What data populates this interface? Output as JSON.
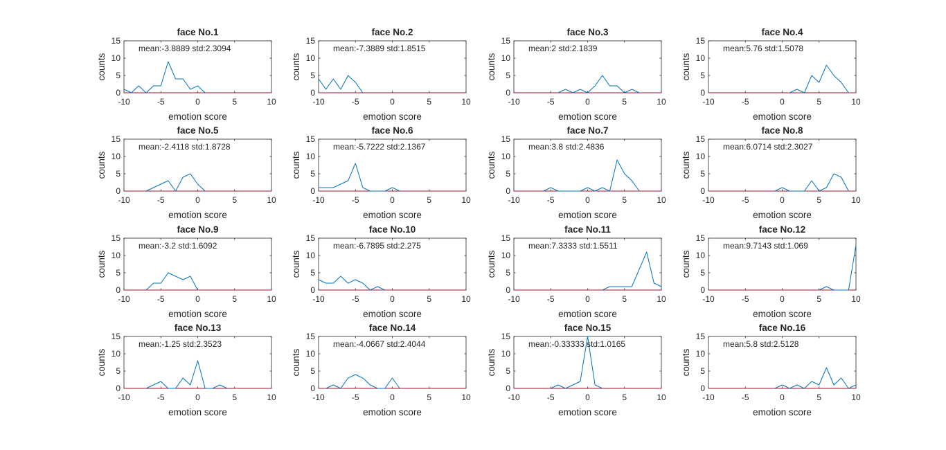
{
  "figure": {
    "background": "#ffffff",
    "line_color": "#0072bd",
    "baseline_color": "#a2142f",
    "axis_color": "#262626"
  },
  "chart_data": [
    {
      "type": "line",
      "title": "face No.1",
      "xlabel": "emotion score",
      "ylabel": "counts",
      "annotation": "mean:-3.8889  std:2.3094",
      "xlim": [
        -10,
        10
      ],
      "ylim": [
        0,
        15
      ],
      "xticks": [
        "-10",
        "-5",
        "0",
        "5",
        "10"
      ],
      "yticks": [
        "0",
        "5",
        "10",
        "15"
      ],
      "x": [
        -10,
        -9,
        -8,
        -7,
        -6,
        -5,
        -4,
        -3,
        -2,
        -1,
        0,
        1
      ],
      "y": [
        1,
        0,
        2,
        0,
        2,
        2,
        9,
        4,
        4,
        1,
        2,
        0
      ]
    },
    {
      "type": "line",
      "title": "face No.2",
      "xlabel": "emotion score",
      "ylabel": "counts",
      "annotation": "mean:-7.3889  std:1.8515",
      "xlim": [
        -10,
        10
      ],
      "ylim": [
        0,
        15
      ],
      "xticks": [
        "-10",
        "-5",
        "0",
        "5",
        "10"
      ],
      "yticks": [
        "0",
        "5",
        "10",
        "15"
      ],
      "x": [
        -10,
        -9,
        -8,
        -7,
        -6,
        -5,
        -4
      ],
      "y": [
        4,
        1,
        4,
        1,
        5,
        3,
        0
      ]
    },
    {
      "type": "line",
      "title": "face No.3",
      "xlabel": "emotion score",
      "ylabel": "counts",
      "annotation": "mean:2  std:2.1839",
      "xlim": [
        -10,
        10
      ],
      "ylim": [
        0,
        15
      ],
      "xticks": [
        "-10",
        "-5",
        "0",
        "5",
        "10"
      ],
      "yticks": [
        "0",
        "5",
        "10",
        "15"
      ],
      "x": [
        -4,
        -3,
        -2,
        -1,
        0,
        1,
        2,
        3,
        4,
        5,
        6,
        7
      ],
      "y": [
        0,
        1,
        0,
        1,
        0,
        2,
        5,
        2,
        2,
        0,
        1,
        0
      ]
    },
    {
      "type": "line",
      "title": "face No.4",
      "xlabel": "emotion score",
      "ylabel": "counts",
      "annotation": "mean:5.76  std:1.5078",
      "xlim": [
        -10,
        10
      ],
      "ylim": [
        0,
        15
      ],
      "xticks": [
        "-10",
        "-5",
        "0",
        "5",
        "10"
      ],
      "yticks": [
        "0",
        "5",
        "10",
        "15"
      ],
      "x": [
        1,
        2,
        3,
        4,
        5,
        6,
        7,
        8,
        9
      ],
      "y": [
        0,
        1,
        0,
        5,
        3,
        8,
        5,
        3,
        0
      ]
    },
    {
      "type": "line",
      "title": "face No.5",
      "xlabel": "emotion score",
      "ylabel": "counts",
      "annotation": "mean:-2.4118  std:1.8728",
      "xlim": [
        -10,
        10
      ],
      "ylim": [
        0,
        15
      ],
      "xticks": [
        "-10",
        "-5",
        "0",
        "5",
        "10"
      ],
      "yticks": [
        "0",
        "5",
        "10",
        "15"
      ],
      "x": [
        -7,
        -6,
        -5,
        -4,
        -3,
        -2,
        -1,
        0,
        1
      ],
      "y": [
        0,
        1,
        2,
        3,
        0,
        4,
        5,
        2,
        0
      ]
    },
    {
      "type": "line",
      "title": "face No.6",
      "xlabel": "emotion score",
      "ylabel": "counts",
      "annotation": "mean:-5.7222  std:2.1367",
      "xlim": [
        -10,
        10
      ],
      "ylim": [
        0,
        15
      ],
      "xticks": [
        "-10",
        "-5",
        "0",
        "5",
        "10"
      ],
      "yticks": [
        "0",
        "5",
        "10",
        "15"
      ],
      "x": [
        -10,
        -9,
        -8,
        -7,
        -6,
        -5,
        -4,
        -3,
        -2,
        -1,
        0,
        1
      ],
      "y": [
        1,
        1,
        1,
        2,
        3,
        8,
        1,
        0,
        0,
        0,
        1,
        0
      ]
    },
    {
      "type": "line",
      "title": "face No.7",
      "xlabel": "emotion score",
      "ylabel": "counts",
      "annotation": "mean:3.8  std:2.4836",
      "xlim": [
        -10,
        10
      ],
      "ylim": [
        0,
        15
      ],
      "xticks": [
        "-10",
        "-5",
        "0",
        "5",
        "10"
      ],
      "yticks": [
        "0",
        "5",
        "10",
        "15"
      ],
      "x": [
        -6,
        -5,
        -4,
        -1,
        0,
        1,
        2,
        3,
        4,
        5,
        6,
        7
      ],
      "y": [
        0,
        1,
        0,
        0,
        1,
        0,
        1,
        0,
        9,
        5,
        3,
        0
      ]
    },
    {
      "type": "line",
      "title": "face No.8",
      "xlabel": "emotion score",
      "ylabel": "counts",
      "annotation": "mean:6.0714  std:2.3027",
      "xlim": [
        -10,
        10
      ],
      "ylim": [
        0,
        15
      ],
      "xticks": [
        "-10",
        "-5",
        "0",
        "5",
        "10"
      ],
      "yticks": [
        "0",
        "5",
        "10",
        "15"
      ],
      "x": [
        -1,
        0,
        1,
        3,
        4,
        5,
        6,
        7,
        8,
        9
      ],
      "y": [
        0,
        1,
        0,
        0,
        3,
        0,
        1,
        5,
        4,
        0
      ]
    },
    {
      "type": "line",
      "title": "face No.9",
      "xlabel": "emotion score",
      "ylabel": "counts",
      "annotation": "mean:-3.2  std:1.6092",
      "xlim": [
        -10,
        10
      ],
      "ylim": [
        0,
        15
      ],
      "xticks": [
        "-10",
        "-5",
        "0",
        "5",
        "10"
      ],
      "yticks": [
        "0",
        "5",
        "10",
        "15"
      ],
      "x": [
        -7,
        -6,
        -5,
        -4,
        -3,
        -2,
        -1,
        0
      ],
      "y": [
        0,
        2,
        2,
        5,
        4,
        3,
        4,
        0
      ]
    },
    {
      "type": "line",
      "title": "face No.10",
      "xlabel": "emotion score",
      "ylabel": "counts",
      "annotation": "mean:-6.7895  std:2.275",
      "xlim": [
        -10,
        10
      ],
      "ylim": [
        0,
        15
      ],
      "xticks": [
        "-10",
        "-5",
        "0",
        "5",
        "10"
      ],
      "yticks": [
        "0",
        "5",
        "10",
        "15"
      ],
      "x": [
        -10,
        -9,
        -8,
        -7,
        -6,
        -5,
        -4,
        -3,
        -2,
        -1
      ],
      "y": [
        3,
        2,
        2,
        4,
        2,
        3,
        2,
        0,
        1,
        0
      ]
    },
    {
      "type": "line",
      "title": "face No.11",
      "xlabel": "emotion score",
      "ylabel": "counts",
      "annotation": "mean:7.3333  std:1.5511",
      "xlim": [
        -10,
        10
      ],
      "ylim": [
        0,
        15
      ],
      "xticks": [
        "-10",
        "-5",
        "0",
        "5",
        "10"
      ],
      "yticks": [
        "0",
        "5",
        "10",
        "15"
      ],
      "x": [
        2,
        3,
        4,
        5,
        6,
        7,
        8,
        9,
        10
      ],
      "y": [
        0,
        1,
        1,
        1,
        1,
        6,
        11,
        2,
        1
      ]
    },
    {
      "type": "line",
      "title": "face No.12",
      "xlabel": "emotion score",
      "ylabel": "counts",
      "annotation": "mean:9.7143  std:1.069",
      "xlim": [
        -10,
        10
      ],
      "ylim": [
        0,
        15
      ],
      "xticks": [
        "-10",
        "-5",
        "0",
        "5",
        "10"
      ],
      "yticks": [
        "0",
        "5",
        "10",
        "15"
      ],
      "x": [
        5,
        6,
        7,
        8,
        9,
        10
      ],
      "y": [
        0,
        1,
        0,
        0,
        0,
        13
      ]
    },
    {
      "type": "line",
      "title": "face No.13",
      "xlabel": "emotion score",
      "ylabel": "counts",
      "annotation": "mean:-1.25  std:2.3523",
      "xlim": [
        -10,
        10
      ],
      "ylim": [
        0,
        15
      ],
      "xticks": [
        "-10",
        "-5",
        "0",
        "5",
        "10"
      ],
      "yticks": [
        "0",
        "5",
        "10",
        "15"
      ],
      "x": [
        -7,
        -6,
        -5,
        -4,
        -3,
        -2,
        -1,
        0,
        1,
        2,
        3,
        4
      ],
      "y": [
        0,
        1,
        2,
        0,
        0,
        3,
        1,
        8,
        0,
        0,
        1,
        0
      ]
    },
    {
      "type": "line",
      "title": "face No.14",
      "xlabel": "emotion score",
      "ylabel": "counts",
      "annotation": "mean:-4.0667  std:2.4044",
      "xlim": [
        -10,
        10
      ],
      "ylim": [
        0,
        15
      ],
      "xticks": [
        "-10",
        "-5",
        "0",
        "5",
        "10"
      ],
      "yticks": [
        "0",
        "5",
        "10",
        "15"
      ],
      "x": [
        -9,
        -8,
        -7,
        -6,
        -5,
        -4,
        -3,
        -2,
        -1,
        0,
        1
      ],
      "y": [
        0,
        1,
        0,
        3,
        4,
        3,
        1,
        0,
        0,
        3,
        0
      ]
    },
    {
      "type": "line",
      "title": "face No.15",
      "xlabel": "emotion score",
      "ylabel": "counts",
      "annotation": "mean:-0.33333  std:1.0165",
      "xlim": [
        -10,
        10
      ],
      "ylim": [
        0,
        15
      ],
      "xticks": [
        "-10",
        "-5",
        "0",
        "5",
        "10"
      ],
      "yticks": [
        "0",
        "5",
        "10",
        "15"
      ],
      "x": [
        -5,
        -4,
        -3,
        -2,
        -1,
        0,
        1,
        2
      ],
      "y": [
        0,
        1,
        0,
        1,
        2,
        15,
        1,
        0
      ]
    },
    {
      "type": "line",
      "title": "face No.16",
      "xlabel": "emotion score",
      "ylabel": "counts",
      "annotation": "mean:5.8  std:2.5128",
      "xlim": [
        -10,
        10
      ],
      "ylim": [
        0,
        15
      ],
      "xticks": [
        "-10",
        "-5",
        "0",
        "5",
        "10"
      ],
      "yticks": [
        "0",
        "5",
        "10",
        "15"
      ],
      "x": [
        -1,
        0,
        1,
        2,
        3,
        4,
        5,
        6,
        7,
        8,
        9,
        10
      ],
      "y": [
        0,
        1,
        0,
        1,
        0,
        2,
        1,
        6,
        1,
        3,
        0,
        1
      ]
    }
  ]
}
